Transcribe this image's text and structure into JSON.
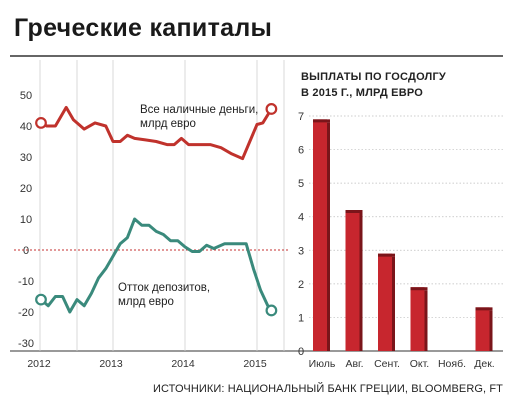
{
  "title": "Греческие капиталы",
  "source": "ИСТОЧНИКИ: НАЦИОНАЛЬНЫЙ БАНК ГРЕЦИИ, BLOOMBERG, FT",
  "colors": {
    "cash": "#c0322c",
    "outflow": "#3a8a7c",
    "bar": "#c7262e",
    "bar_dark": "#7a151a",
    "zero_line": "#c43030",
    "grid": "#cfcfcf"
  },
  "chart_data": [
    {
      "type": "line",
      "yticks": [
        50,
        40,
        30,
        20,
        10,
        0,
        -10,
        -20,
        -30
      ],
      "ylim": [
        -30,
        50
      ],
      "xticks": [
        "2012",
        "2013",
        "2014",
        "2015"
      ],
      "series": [
        {
          "name": "Все наличные деньги, млрд евро",
          "x": [
            2012.0,
            2012.08,
            2012.2,
            2012.35,
            2012.45,
            2012.6,
            2012.75,
            2012.9,
            2013.0,
            2013.1,
            2013.2,
            2013.3,
            2013.45,
            2013.6,
            2013.75,
            2013.85,
            2013.95,
            2014.05,
            2014.2,
            2014.35,
            2014.5,
            2014.65,
            2014.8,
            2014.9,
            2015.0,
            2015.08,
            2015.2
          ],
          "y": [
            41,
            40,
            40,
            46,
            42,
            39,
            41,
            40,
            35,
            35,
            37,
            36,
            35.5,
            35,
            34,
            34,
            36,
            34,
            34,
            34,
            33,
            31,
            29.5,
            35,
            40.5,
            41,
            45.5
          ]
        },
        {
          "name": "Отток депозитов, млрд евро",
          "x": [
            2012.0,
            2012.1,
            2012.2,
            2012.3,
            2012.4,
            2012.5,
            2012.6,
            2012.7,
            2012.8,
            2012.9,
            2013.0,
            2013.1,
            2013.2,
            2013.3,
            2013.4,
            2013.5,
            2013.6,
            2013.7,
            2013.8,
            2013.9,
            2014.0,
            2014.1,
            2014.2,
            2014.3,
            2014.4,
            2014.55,
            2014.7,
            2014.85,
            2014.95,
            2015.05,
            2015.15,
            2015.2
          ],
          "y": [
            -16,
            -18,
            -15,
            -15,
            -20,
            -16,
            -18,
            -14,
            -9,
            -6,
            -2,
            2,
            4,
            10,
            8,
            8,
            6,
            5,
            3,
            3,
            1,
            -0.5,
            -0.5,
            1.5,
            0.5,
            2,
            2,
            2,
            -6,
            -13,
            -18,
            -19.5
          ]
        }
      ],
      "labels": {
        "cash_line1": "Все наличные деньги,",
        "cash_line2": "млрд евро",
        "outflow_line1": "Отток депозитов,",
        "outflow_line2": "млрд евро"
      }
    },
    {
      "type": "bar",
      "title_line1": "ВЫПЛАТЫ ПО ГОСДОЛГУ",
      "title_line2": "В 2015 Г., МЛРД ЕВРО",
      "categories": [
        "Июль",
        "Авг.",
        "Сент.",
        "Окт.",
        "Нояб.",
        "Дек."
      ],
      "values": [
        6.9,
        4.2,
        2.9,
        1.9,
        0,
        1.3
      ],
      "yticks": [
        7,
        6,
        5,
        4,
        3,
        2,
        1,
        0
      ],
      "ylim": [
        0,
        7
      ]
    }
  ]
}
